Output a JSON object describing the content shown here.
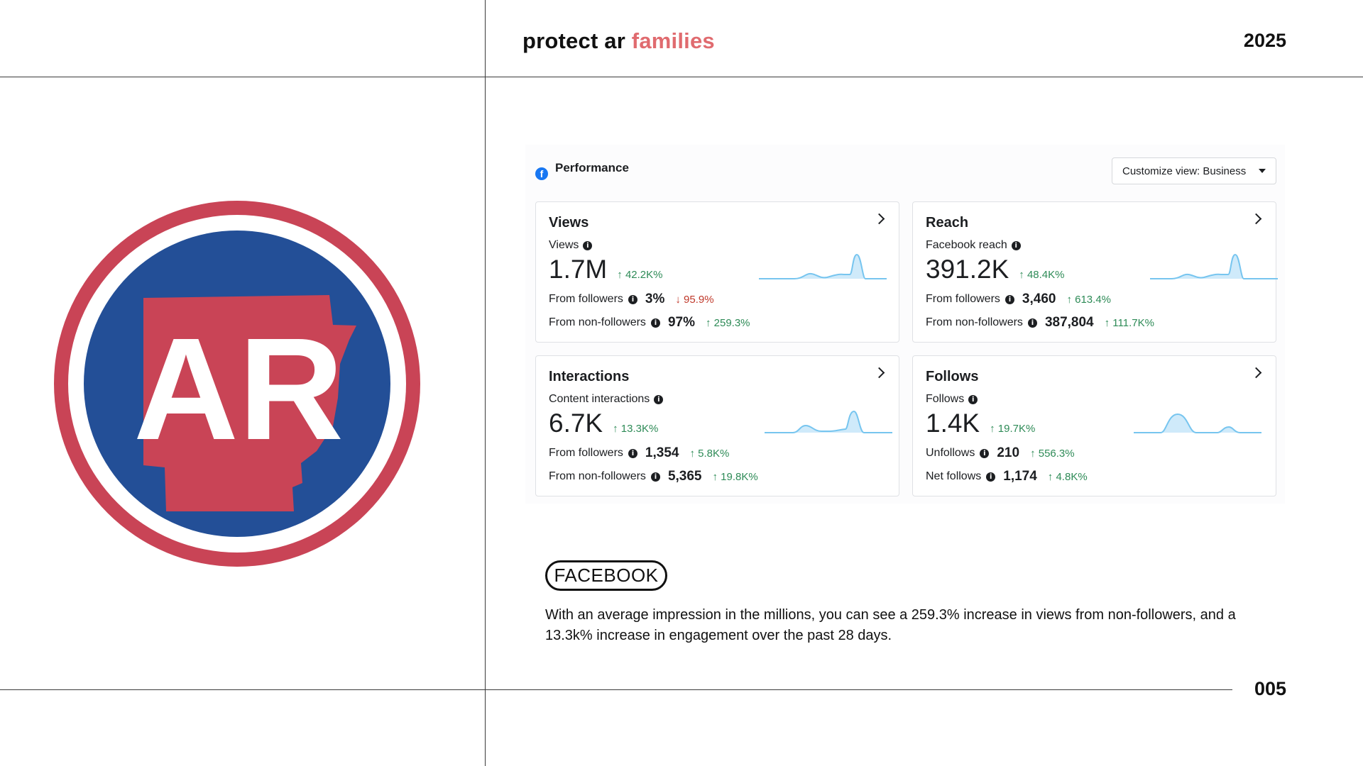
{
  "header": {
    "title_main": "protect ar ",
    "title_accent": "families",
    "year": "2025"
  },
  "footer": {
    "page_number": "005"
  },
  "logo": {
    "text": "AR",
    "colors": {
      "ring": "#c94456",
      "blue": "#234f97",
      "state": "#c94456"
    }
  },
  "performance": {
    "title": "Performance",
    "customize_label": "Customize view: Business",
    "cards": [
      {
        "title": "Views",
        "metric_label": "Views",
        "value": "1.7M",
        "change": "42.2K%",
        "change_dir": "up",
        "rows": [
          {
            "label": "From followers",
            "value": "3%",
            "change": "95.9%",
            "dir": "down"
          },
          {
            "label": "From non-followers",
            "value": "97%",
            "change": "259.3%",
            "dir": "up"
          }
        ]
      },
      {
        "title": "Reach",
        "metric_label": "Facebook reach",
        "value": "391.2K",
        "change": "48.4K%",
        "change_dir": "up",
        "rows": [
          {
            "label": "From followers",
            "value": "3,460",
            "change": "613.4%",
            "dir": "up"
          },
          {
            "label": "From non-followers",
            "value": "387,804",
            "change": "111.7K%",
            "dir": "up"
          }
        ]
      },
      {
        "title": "Interactions",
        "metric_label": "Content interactions",
        "value": "6.7K",
        "change": "13.3K%",
        "change_dir": "up",
        "rows": [
          {
            "label": "From followers",
            "value": "1,354",
            "change": "5.8K%",
            "dir": "up"
          },
          {
            "label": "From non-followers",
            "value": "5,365",
            "change": "19.8K%",
            "dir": "up"
          }
        ]
      },
      {
        "title": "Follows",
        "metric_label": "Follows",
        "value": "1.4K",
        "change": "19.7K%",
        "change_dir": "up",
        "rows": [
          {
            "label": "Unfollows",
            "value": "210",
            "change": "556.3%",
            "dir": "up"
          },
          {
            "label": "Net follows",
            "value": "1,174",
            "change": "4.8K%",
            "dir": "up"
          }
        ]
      }
    ]
  },
  "section": {
    "badge": "FACEBOOK",
    "paragraph": "With an average impression in the millions, you can see a 259.3% increase in views from non-followers, and a 13.3k% increase in engagement over the past 28 days."
  }
}
